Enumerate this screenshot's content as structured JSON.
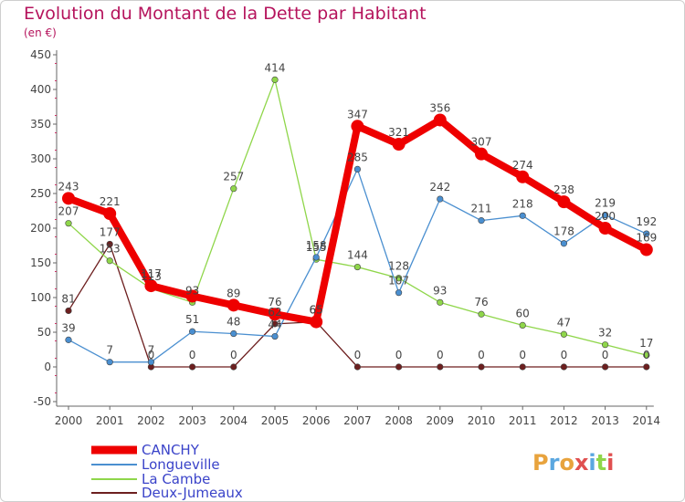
{
  "chart_data": {
    "type": "line",
    "title": "Evolution du Montant de la Dette par Habitant",
    "subtitle": "(en €)",
    "x": [
      "2000",
      "2001",
      "2002",
      "2003",
      "2004",
      "2005",
      "2006",
      "2007",
      "2008",
      "2009",
      "2010",
      "2011",
      "2012",
      "2013",
      "2014"
    ],
    "ylim": [
      -50,
      450
    ],
    "yticks": [
      -50,
      0,
      50,
      100,
      150,
      200,
      250,
      300,
      350,
      400,
      450
    ],
    "grid": false,
    "legend_placement": "bottom-left",
    "series": [
      {
        "name": "CANCHY",
        "color": "#ee0000",
        "values": [
          243,
          221,
          117,
          102,
          89,
          76,
          65,
          347,
          321,
          356,
          307,
          274,
          238,
          200,
          169
        ]
      },
      {
        "name": "Longueville",
        "color": "#4a8fd0",
        "values": [
          39,
          7,
          7,
          51,
          48,
          44,
          158,
          285,
          107,
          242,
          211,
          218,
          178,
          219,
          192
        ]
      },
      {
        "name": "La Cambe",
        "color": "#8fd64a",
        "values": [
          207,
          153,
          113,
          93,
          257,
          414,
          155,
          144,
          128,
          93,
          76,
          60,
          47,
          32,
          17
        ]
      },
      {
        "name": "Deux-Jumeaux",
        "color": "#6d1f1f",
        "values": [
          81,
          177,
          0,
          0,
          0,
          62,
          65,
          0,
          0,
          0,
          0,
          0,
          0,
          0,
          0
        ]
      }
    ],
    "data_labels": [
      {
        "series": 0,
        "text": [
          "243",
          "221",
          "117",
          "",
          "89",
          "76",
          "65",
          "347",
          "321",
          "356",
          "307",
          "274",
          "238",
          "200",
          "169"
        ]
      },
      {
        "series": 1,
        "text": [
          "39",
          "7",
          "7",
          "51",
          "48",
          "44",
          "158",
          "285",
          "107",
          "242",
          "211",
          "218",
          "178",
          "219",
          "192"
        ]
      },
      {
        "series": 2,
        "text": [
          "207",
          "153",
          "113",
          "93",
          "257",
          "414",
          "155",
          "144",
          "128",
          "93",
          "76",
          "60",
          "47",
          "32",
          "17"
        ]
      },
      {
        "series": 3,
        "text": [
          "81",
          "177",
          "0",
          "0",
          "0",
          "62",
          "65",
          "0",
          "0",
          "0",
          "0",
          "0",
          "0",
          "0",
          "0"
        ]
      }
    ]
  },
  "logo": {
    "text": "Proxiti"
  }
}
